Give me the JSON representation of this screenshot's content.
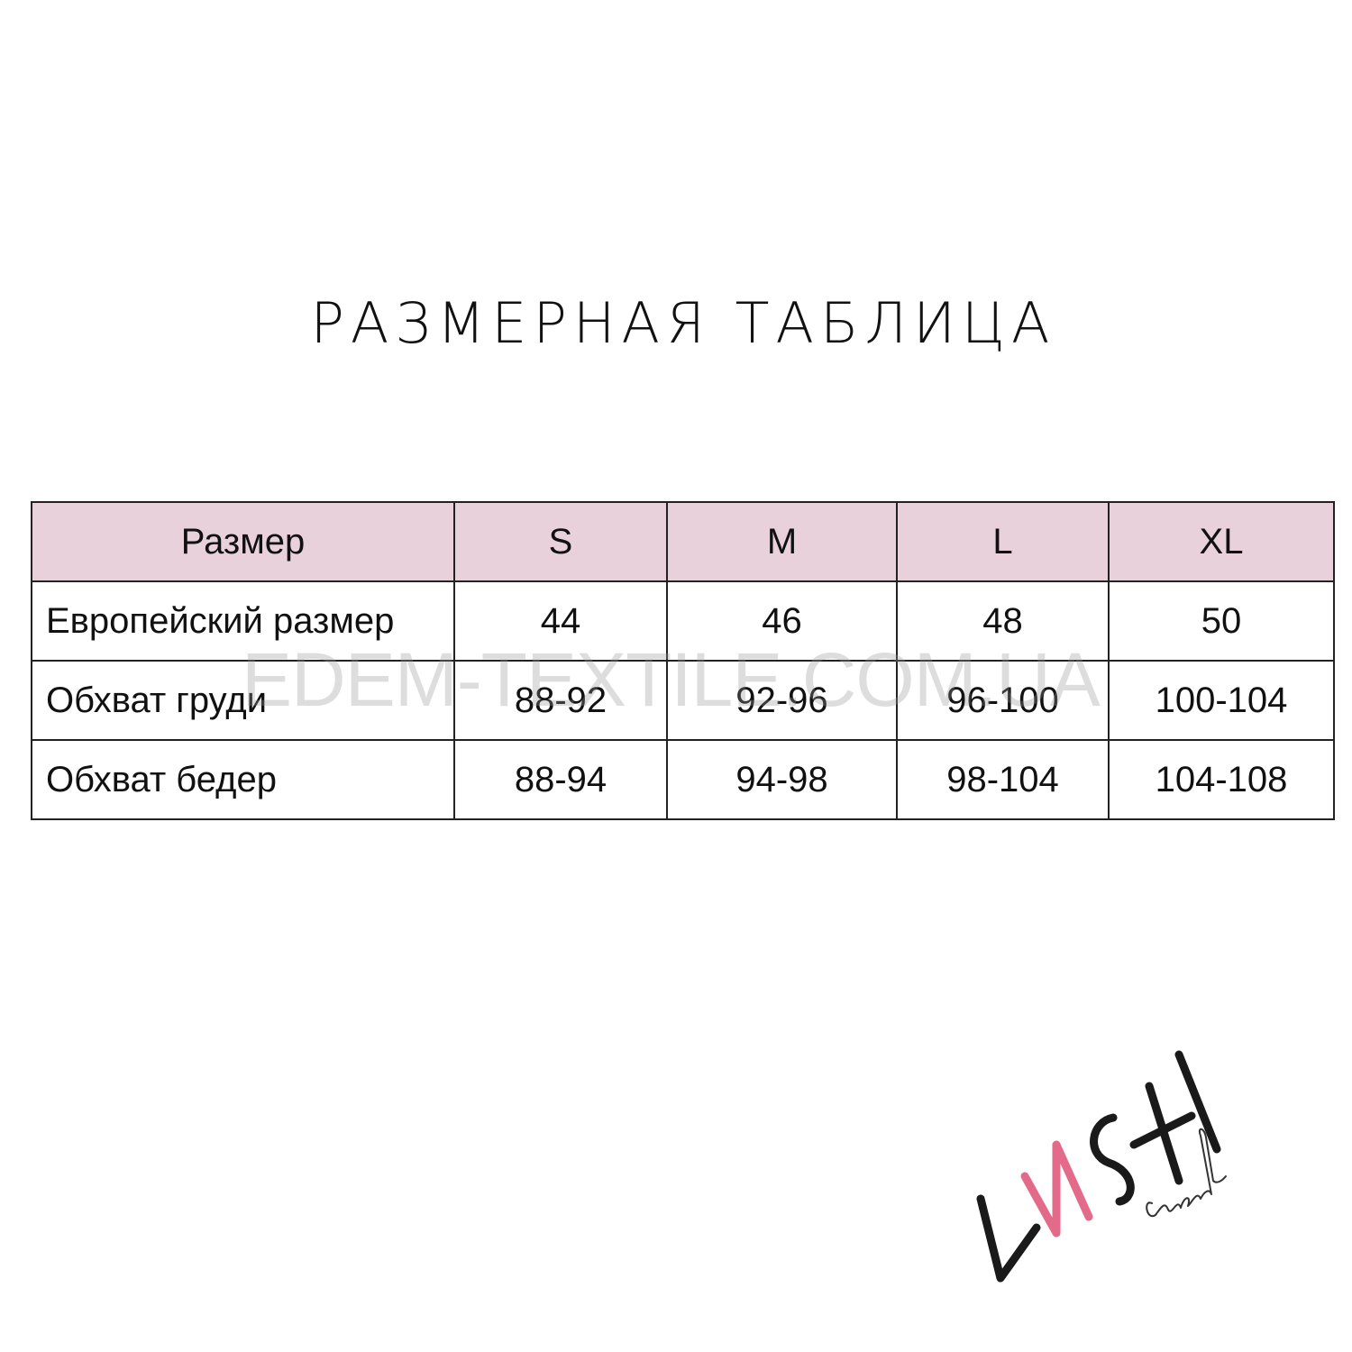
{
  "title": "РАЗМЕРНАЯ ТАБЛИЦА",
  "table": {
    "header": [
      "Размер",
      "S",
      "M",
      "L",
      "XL"
    ],
    "rows": [
      [
        "Европейский размер",
        "44",
        "46",
        "48",
        "50"
      ],
      [
        "Обхват груди",
        "88-92",
        "92-96",
        "96-100",
        "100-104"
      ],
      [
        "Обхват бедер",
        "88-94",
        "94-98",
        "98-104",
        "104-108"
      ]
    ]
  },
  "watermark": "EDEM-TEXTILE.COM.UA",
  "logo": {
    "text": "LUSH",
    "subtext": "casual",
    "accent_color": "#e46a8a"
  },
  "colors": {
    "header_bg": "#e9d1dc",
    "border": "#222222"
  }
}
